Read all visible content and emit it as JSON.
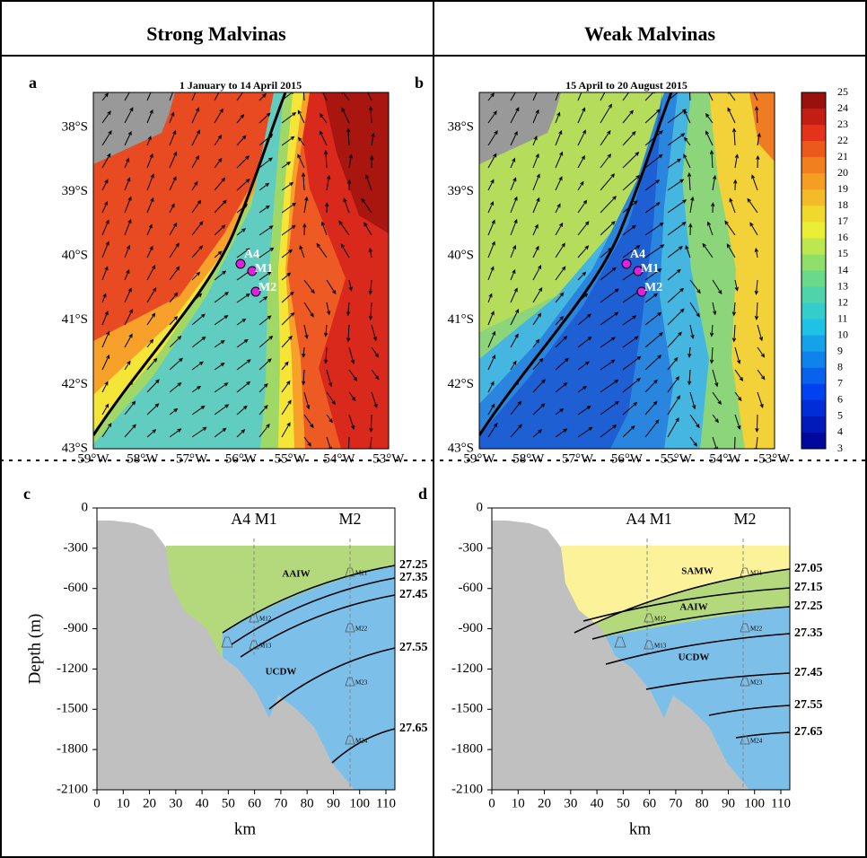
{
  "headers": [
    "Strong Malvinas",
    "Weak Malvinas"
  ],
  "maps": [
    {
      "label": "a",
      "title": "1 January to 14 April 2015",
      "lat_ticks": [
        "38°S",
        "39°S",
        "40°S",
        "41°S",
        "42°S",
        "43°S"
      ],
      "lon_ticks": [
        "59°W",
        "58°W",
        "57°W",
        "56°W",
        "55°W",
        "54°W",
        "53°W"
      ],
      "stations": [
        "A4",
        "M1",
        "M2"
      ]
    },
    {
      "label": "b",
      "title": "15 April to 20 August 2015",
      "lat_ticks": [
        "38°S",
        "39°S",
        "40°S",
        "41°S",
        "42°S",
        "43°S"
      ],
      "lon_ticks": [
        "59°W",
        "58°W",
        "57°W",
        "56°W",
        "55°W",
        "54°W",
        "53°W"
      ],
      "stations": [
        "A4",
        "M1",
        "M2"
      ]
    }
  ],
  "colorbar": {
    "ticks": [
      25,
      24,
      23,
      22,
      21,
      20,
      19,
      18,
      17,
      16,
      15,
      14,
      13,
      12,
      11,
      10,
      9,
      8,
      7,
      6,
      5,
      4,
      3
    ]
  },
  "sections": [
    {
      "label": "c",
      "ylabel": "Depth (m)",
      "xlabel": "km",
      "yticks": [
        0,
        -300,
        -600,
        -900,
        -1200,
        -1500,
        -1800,
        -2100
      ],
      "xticks": [
        0,
        10,
        20,
        30,
        40,
        50,
        60,
        70,
        80,
        90,
        100,
        110
      ],
      "stations": [
        "A4 M1",
        "M2"
      ],
      "water_masses": [
        "AAIW",
        "UCDW"
      ],
      "isopycnals": [
        27.25,
        27.35,
        27.45,
        27.55,
        27.65
      ],
      "instruments": [
        "M21",
        "M12",
        "M22",
        "M13",
        "M23",
        "M24"
      ]
    },
    {
      "label": "d",
      "ylabel": "Depth (m)",
      "xlabel": "km",
      "yticks": [
        0,
        -300,
        -600,
        -900,
        -1200,
        -1500,
        -1800,
        -2100
      ],
      "xticks": [
        0,
        10,
        20,
        30,
        40,
        50,
        60,
        70,
        80,
        90,
        100,
        110
      ],
      "stations": [
        "A4 M1",
        "M2"
      ],
      "water_masses": [
        "SAMW",
        "AAIW",
        "UCDW"
      ],
      "isopycnals": [
        27.05,
        27.15,
        27.25,
        27.35,
        27.45,
        27.55,
        27.65
      ],
      "instruments": [
        "M21",
        "M12",
        "M22",
        "M13",
        "M23",
        "M24"
      ]
    }
  ]
}
